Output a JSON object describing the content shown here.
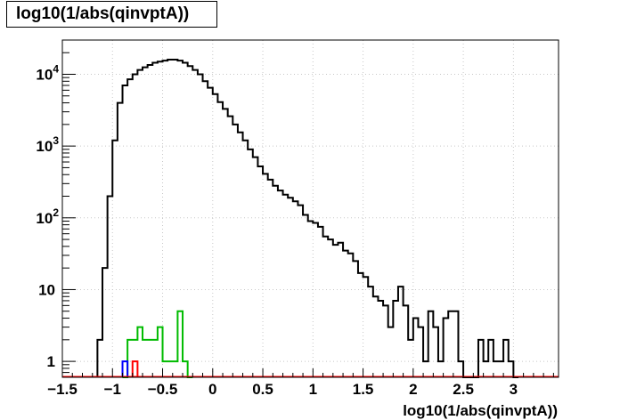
{
  "chart_data": {
    "type": "histogram",
    "title": "log10(1/abs(qinvptA))",
    "xlabel": "log10(1/abs(qinvptA))",
    "ylabel": "",
    "xlim": [
      -1.5,
      3.45
    ],
    "ylim": [
      0.6,
      30000
    ],
    "y_scale": "log",
    "grid": true,
    "x_ticks": [
      -1.5,
      -1,
      -0.5,
      0,
      0.5,
      1,
      1.5,
      2,
      2.5,
      3
    ],
    "x_tick_labels": [
      "−1.5",
      "−1",
      "−0.5",
      "0",
      "0.5",
      "1",
      "1.5",
      "2",
      "2.5",
      "3"
    ],
    "y_ticks": [
      1,
      10,
      100,
      1000,
      10000
    ],
    "y_tick_labels": [
      {
        "base": "1",
        "exp": ""
      },
      {
        "base": "10",
        "exp": ""
      },
      {
        "base": "10",
        "exp": "2"
      },
      {
        "base": "10",
        "exp": "3"
      },
      {
        "base": "10",
        "exp": "4"
      }
    ],
    "bin_width": 0.05,
    "series": [
      {
        "color": "#000000",
        "bins": [
          [
            -1.15,
            2
          ],
          [
            -1.1,
            20
          ],
          [
            -1.05,
            200
          ],
          [
            -1.0,
            1200
          ],
          [
            -0.95,
            4000
          ],
          [
            -0.9,
            7000
          ],
          [
            -0.85,
            8500
          ],
          [
            -0.8,
            10000
          ],
          [
            -0.75,
            11500
          ],
          [
            -0.7,
            12500
          ],
          [
            -0.65,
            13500
          ],
          [
            -0.6,
            14500
          ],
          [
            -0.55,
            15000
          ],
          [
            -0.5,
            15500
          ],
          [
            -0.45,
            16000
          ],
          [
            -0.4,
            16000
          ],
          [
            -0.35,
            15500
          ],
          [
            -0.3,
            14500
          ],
          [
            -0.25,
            13000
          ],
          [
            -0.2,
            11500
          ],
          [
            -0.15,
            10000
          ],
          [
            -0.1,
            8000
          ],
          [
            -0.05,
            6500
          ],
          [
            0.0,
            5300
          ],
          [
            0.05,
            4100
          ],
          [
            0.1,
            3300
          ],
          [
            0.15,
            2600
          ],
          [
            0.2,
            2000
          ],
          [
            0.25,
            1550
          ],
          [
            0.3,
            1200
          ],
          [
            0.35,
            900
          ],
          [
            0.4,
            700
          ],
          [
            0.45,
            520
          ],
          [
            0.5,
            410
          ],
          [
            0.55,
            340
          ],
          [
            0.6,
            280
          ],
          [
            0.65,
            240
          ],
          [
            0.7,
            210
          ],
          [
            0.75,
            190
          ],
          [
            0.8,
            170
          ],
          [
            0.85,
            150
          ],
          [
            0.9,
            110
          ],
          [
            0.95,
            90
          ],
          [
            1.0,
            85
          ],
          [
            1.05,
            75
          ],
          [
            1.1,
            55
          ],
          [
            1.15,
            50
          ],
          [
            1.2,
            42
          ],
          [
            1.25,
            45
          ],
          [
            1.3,
            35
          ],
          [
            1.35,
            32
          ],
          [
            1.4,
            25
          ],
          [
            1.45,
            17
          ],
          [
            1.5,
            15
          ],
          [
            1.55,
            11
          ],
          [
            1.6,
            8
          ],
          [
            1.65,
            7
          ],
          [
            1.7,
            6
          ],
          [
            1.75,
            3
          ],
          [
            1.8,
            7
          ],
          [
            1.85,
            11
          ],
          [
            1.9,
            6
          ],
          [
            1.95,
            2
          ],
          [
            2.0,
            4
          ],
          [
            2.05,
            3
          ],
          [
            2.1,
            1
          ],
          [
            2.15,
            5
          ],
          [
            2.2,
            3
          ],
          [
            2.25,
            1
          ],
          [
            2.3,
            4
          ],
          [
            2.35,
            5
          ],
          [
            2.4,
            5
          ],
          [
            2.45,
            1
          ],
          [
            2.5,
            0
          ],
          [
            2.55,
            0
          ],
          [
            2.6,
            0
          ],
          [
            2.65,
            2
          ],
          [
            2.7,
            1
          ],
          [
            2.75,
            2
          ],
          [
            2.8,
            1
          ],
          [
            2.85,
            1
          ],
          [
            2.9,
            2
          ],
          [
            2.95,
            1
          ],
          [
            3.0,
            0
          ]
        ]
      },
      {
        "color": "#00bb00",
        "bins": [
          [
            -0.9,
            0
          ],
          [
            -0.85,
            2
          ],
          [
            -0.8,
            2
          ],
          [
            -0.75,
            3
          ],
          [
            -0.7,
            2
          ],
          [
            -0.65,
            2
          ],
          [
            -0.6,
            2
          ],
          [
            -0.55,
            3
          ],
          [
            -0.5,
            1
          ],
          [
            -0.45,
            1
          ],
          [
            -0.4,
            1
          ],
          [
            -0.35,
            5
          ],
          [
            -0.3,
            1
          ],
          [
            -0.25,
            0
          ]
        ]
      },
      {
        "color": "#0000ff",
        "bins": [
          [
            -0.9,
            1
          ]
        ]
      },
      {
        "color": "#ff0000",
        "bins": [
          [
            -0.8,
            1
          ]
        ]
      }
    ]
  }
}
